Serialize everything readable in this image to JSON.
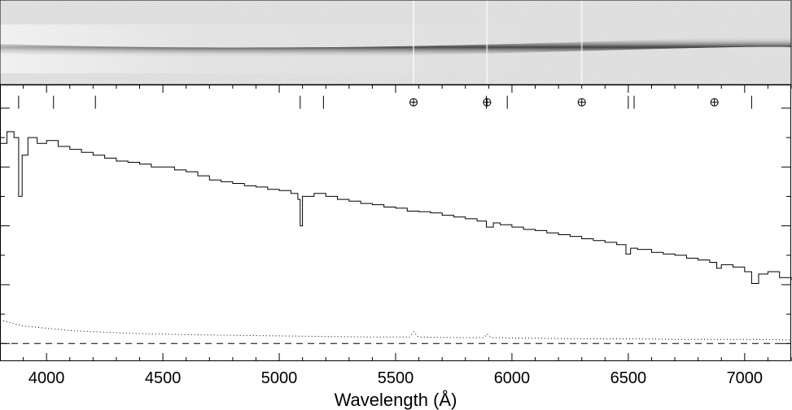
{
  "chart_data": {
    "type": "line",
    "title": "",
    "xlabel": "Wavelength (Å)",
    "ylabel": "",
    "xlim": [
      3800,
      7200
    ],
    "ylim": [
      -0.3,
      4.4
    ],
    "x_ticks_major": [
      4000,
      4500,
      5000,
      5500,
      6000,
      6500,
      7000
    ],
    "x_tick_labels": [
      "4000",
      "4500",
      "5000",
      "5500",
      "6000",
      "6500",
      "7000"
    ],
    "x_ticks_minor_step": 100,
    "y_ticks_major": [
      0,
      1,
      2,
      3,
      4
    ],
    "y_ticks_minor_step": 0.5,
    "grid": false,
    "legend": "none",
    "colors": {
      "spectrum": "#000000",
      "error": "#000000",
      "zero_line": "#000000",
      "image_background": "#e4e4e4",
      "image_trace": "#262626"
    },
    "line_markers": {
      "wavelengths": [
        3880,
        4030,
        4210,
        5090,
        5190,
        5890,
        5980,
        6500,
        6525,
        7030
      ],
      "marker_level": 4.1
    },
    "sky_markers": {
      "wavelengths": [
        5577,
        5893,
        6300,
        6870
      ],
      "marker_level": 4.1,
      "symbol": "circle-plus"
    },
    "series": [
      {
        "style": "histogram",
        "x": [
          3800,
          3830,
          3860,
          3880,
          3895,
          3920,
          3960,
          4000,
          4050,
          4100,
          4150,
          4200,
          4250,
          4300,
          4350,
          4400,
          4450,
          4500,
          4550,
          4600,
          4650,
          4700,
          4750,
          4800,
          4850,
          4900,
          4950,
          5000,
          5050,
          5080,
          5090,
          5100,
          5150,
          5200,
          5250,
          5300,
          5350,
          5400,
          5450,
          5500,
          5550,
          5600,
          5650,
          5700,
          5750,
          5800,
          5850,
          5890,
          5920,
          5950,
          6000,
          6050,
          6100,
          6150,
          6200,
          6250,
          6300,
          6350,
          6400,
          6450,
          6490,
          6510,
          6540,
          6570,
          6600,
          6650,
          6700,
          6750,
          6800,
          6850,
          6880,
          6900,
          6950,
          7000,
          7030,
          7060,
          7100,
          7150,
          7200
        ],
        "y": [
          3.4,
          3.6,
          3.5,
          2.5,
          3.2,
          3.5,
          3.4,
          3.45,
          3.35,
          3.3,
          3.25,
          3.2,
          3.15,
          3.1,
          3.08,
          3.05,
          3.0,
          3.0,
          2.95,
          2.92,
          2.85,
          2.78,
          2.75,
          2.72,
          2.68,
          2.66,
          2.62,
          2.6,
          2.55,
          2.45,
          2.0,
          2.5,
          2.55,
          2.5,
          2.45,
          2.42,
          2.38,
          2.36,
          2.32,
          2.3,
          2.25,
          2.24,
          2.22,
          2.18,
          2.15,
          2.12,
          2.08,
          1.98,
          2.05,
          2.02,
          1.98,
          1.94,
          1.92,
          1.88,
          1.85,
          1.82,
          1.78,
          1.75,
          1.72,
          1.68,
          1.52,
          1.62,
          1.6,
          1.6,
          1.55,
          1.52,
          1.5,
          1.45,
          1.42,
          1.38,
          1.28,
          1.34,
          1.3,
          1.22,
          1.02,
          1.18,
          1.22,
          1.12,
          1.08
        ]
      },
      {
        "style": "dotted",
        "x": [
          3800,
          3850,
          3900,
          3950,
          4000,
          4100,
          4200,
          4400,
          4600,
          4800,
          5000,
          5200,
          5400,
          5560,
          5577,
          5600,
          5800,
          5880,
          5893,
          5910,
          6100,
          6300,
          6500,
          6700,
          6900,
          7100,
          7200
        ],
        "y": [
          0.4,
          0.35,
          0.3,
          0.28,
          0.26,
          0.22,
          0.2,
          0.17,
          0.15,
          0.14,
          0.13,
          0.12,
          0.11,
          0.11,
          0.2,
          0.11,
          0.1,
          0.1,
          0.16,
          0.1,
          0.09,
          0.08,
          0.08,
          0.07,
          0.07,
          0.07,
          0.06
        ]
      },
      {
        "style": "dashed",
        "x": [
          3800,
          7200
        ],
        "y": [
          0,
          0
        ]
      }
    ]
  }
}
